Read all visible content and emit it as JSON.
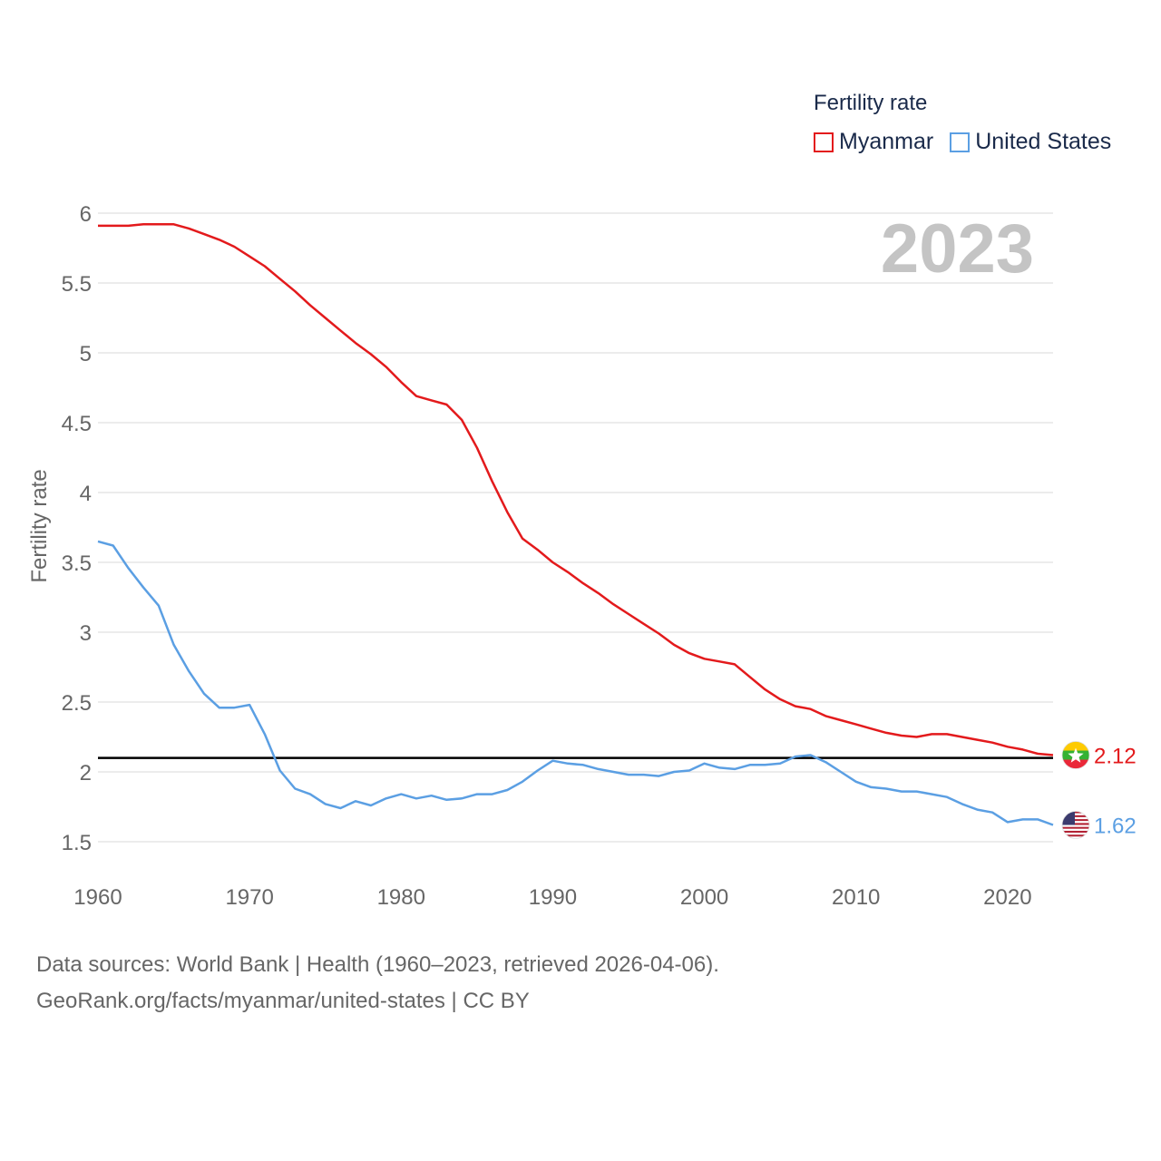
{
  "chart_data": {
    "type": "line",
    "legend_title": "Fertility rate",
    "ylabel": "Fertility rate",
    "xlabel": "",
    "year_watermark": "2023",
    "x": [
      1960,
      1961,
      1962,
      1963,
      1964,
      1965,
      1966,
      1967,
      1968,
      1969,
      1970,
      1971,
      1972,
      1973,
      1974,
      1975,
      1976,
      1977,
      1978,
      1979,
      1980,
      1981,
      1982,
      1983,
      1984,
      1985,
      1986,
      1987,
      1988,
      1989,
      1990,
      1991,
      1992,
      1993,
      1994,
      1995,
      1996,
      1997,
      1998,
      1999,
      2000,
      2001,
      2002,
      2003,
      2004,
      2005,
      2006,
      2007,
      2008,
      2009,
      2010,
      2011,
      2012,
      2013,
      2014,
      2015,
      2016,
      2017,
      2018,
      2019,
      2020,
      2021,
      2022,
      2023
    ],
    "ylim": [
      1.2,
      6.2
    ],
    "xlim": [
      1960,
      2023
    ],
    "y_ticks": [
      1.5,
      2,
      2.5,
      3,
      3.5,
      4,
      4.5,
      5,
      5.5,
      6
    ],
    "y_tick_labels": [
      "1.5",
      "2",
      "2.5",
      "3",
      "3.5",
      "4",
      "4.5",
      "5",
      "5.5",
      "6"
    ],
    "x_ticks": [
      1960,
      1970,
      1980,
      1990,
      2000,
      2010,
      2020
    ],
    "x_tick_labels": [
      "1960",
      "1970",
      "1980",
      "1990",
      "2000",
      "2010",
      "2020"
    ],
    "reference_line": 2.1,
    "series": [
      {
        "name": "Myanmar",
        "color": "#e31a1c",
        "end_label": "2.12",
        "flag": "myanmar-flag",
        "values": [
          5.91,
          5.91,
          5.91,
          5.92,
          5.92,
          5.92,
          5.89,
          5.85,
          5.81,
          5.76,
          5.69,
          5.62,
          5.53,
          5.44,
          5.34,
          5.25,
          5.16,
          5.07,
          4.99,
          4.9,
          4.79,
          4.69,
          4.66,
          4.63,
          4.52,
          4.32,
          4.08,
          3.86,
          3.67,
          3.59,
          3.5,
          3.43,
          3.35,
          3.28,
          3.2,
          3.13,
          3.06,
          2.99,
          2.91,
          2.85,
          2.81,
          2.79,
          2.77,
          2.68,
          2.59,
          2.52,
          2.47,
          2.45,
          2.4,
          2.37,
          2.34,
          2.31,
          2.28,
          2.26,
          2.25,
          2.27,
          2.27,
          2.25,
          2.23,
          2.21,
          2.18,
          2.16,
          2.13,
          2.12
        ]
      },
      {
        "name": "United States",
        "color": "#5b9fe3",
        "end_label": "1.62",
        "flag": "usa-flag",
        "values": [
          3.65,
          3.62,
          3.46,
          3.32,
          3.19,
          2.91,
          2.72,
          2.56,
          2.46,
          2.46,
          2.48,
          2.27,
          2.01,
          1.88,
          1.84,
          1.77,
          1.74,
          1.79,
          1.76,
          1.81,
          1.84,
          1.81,
          1.83,
          1.8,
          1.81,
          1.84,
          1.84,
          1.87,
          1.93,
          2.01,
          2.08,
          2.06,
          2.05,
          2.02,
          2.0,
          1.98,
          1.98,
          1.97,
          2.0,
          2.01,
          2.06,
          2.03,
          2.02,
          2.05,
          2.05,
          2.06,
          2.11,
          2.12,
          2.07,
          2.0,
          1.93,
          1.89,
          1.88,
          1.86,
          1.86,
          1.84,
          1.82,
          1.77,
          1.73,
          1.71,
          1.64,
          1.66,
          1.66,
          1.62
        ]
      }
    ]
  },
  "source": {
    "line1": "Data sources: World Bank | Health (1960–2023, retrieved 2026-04-06).",
    "line2": "GeoRank.org/facts/myanmar/united-states | CC BY"
  }
}
